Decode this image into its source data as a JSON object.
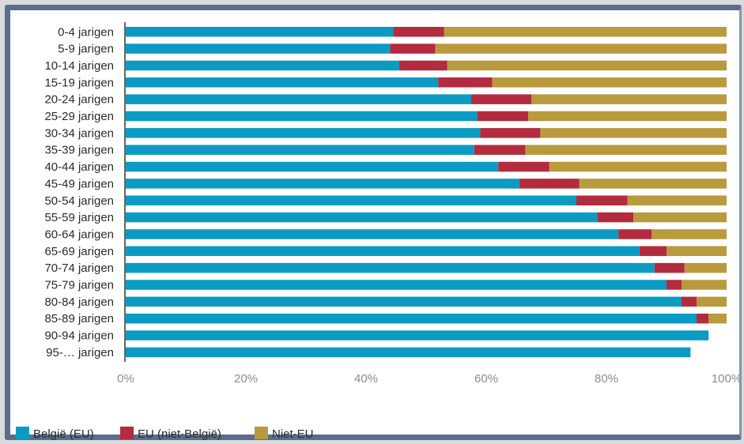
{
  "chart_data": {
    "type": "bar",
    "orientation": "horizontal",
    "stacked": "percent",
    "categories": [
      "0-4 jarigen",
      "5-9 jarigen",
      "10-14 jarigen",
      "15-19 jarigen",
      "20-24 jarigen",
      "25-29 jarigen",
      "30-34 jarigen",
      "35-39 jarigen",
      "40-44 jarigen",
      "45-49 jarigen",
      "50-54 jarigen",
      "55-59 jarigen",
      "60-64 jarigen",
      "65-69 jarigen",
      "70-74 jarigen",
      "75-79 jarigen",
      "80-84 jarigen",
      "85-89 jarigen",
      "90-94 jarigen",
      "95-… jarigen"
    ],
    "series": [
      {
        "name": "België (EU)",
        "color": "#0b9bc2",
        "values": [
          44.5,
          44.0,
          45.5,
          52.0,
          57.5,
          58.5,
          59.0,
          58.0,
          62.0,
          65.5,
          75.0,
          78.5,
          82.0,
          85.5,
          88.0,
          90.0,
          92.5,
          95.0,
          97.0,
          94.0
        ]
      },
      {
        "name": "EU (niet-België)",
        "color": "#b32b3f",
        "values": [
          8.5,
          7.5,
          8.0,
          9.0,
          10.0,
          8.5,
          10.0,
          8.5,
          8.5,
          10.0,
          8.5,
          6.0,
          5.5,
          4.5,
          5.0,
          2.5,
          2.5,
          2.0,
          0,
          0
        ]
      },
      {
        "name": "Niet-EU",
        "color": "#b99a3c",
        "values": [
          47.0,
          48.5,
          46.5,
          39.0,
          32.5,
          33.0,
          31.0,
          33.5,
          29.5,
          24.5,
          16.5,
          15.5,
          12.5,
          10.0,
          7.0,
          7.5,
          5.0,
          3.0,
          0,
          0
        ]
      }
    ],
    "xlim": [
      0,
      100
    ],
    "xticks": [
      "0%",
      "20%",
      "40%",
      "60%",
      "80%",
      "100%"
    ],
    "grid": false,
    "legend_position": "bottom-left",
    "title": "",
    "xlabel": "",
    "ylabel": ""
  }
}
